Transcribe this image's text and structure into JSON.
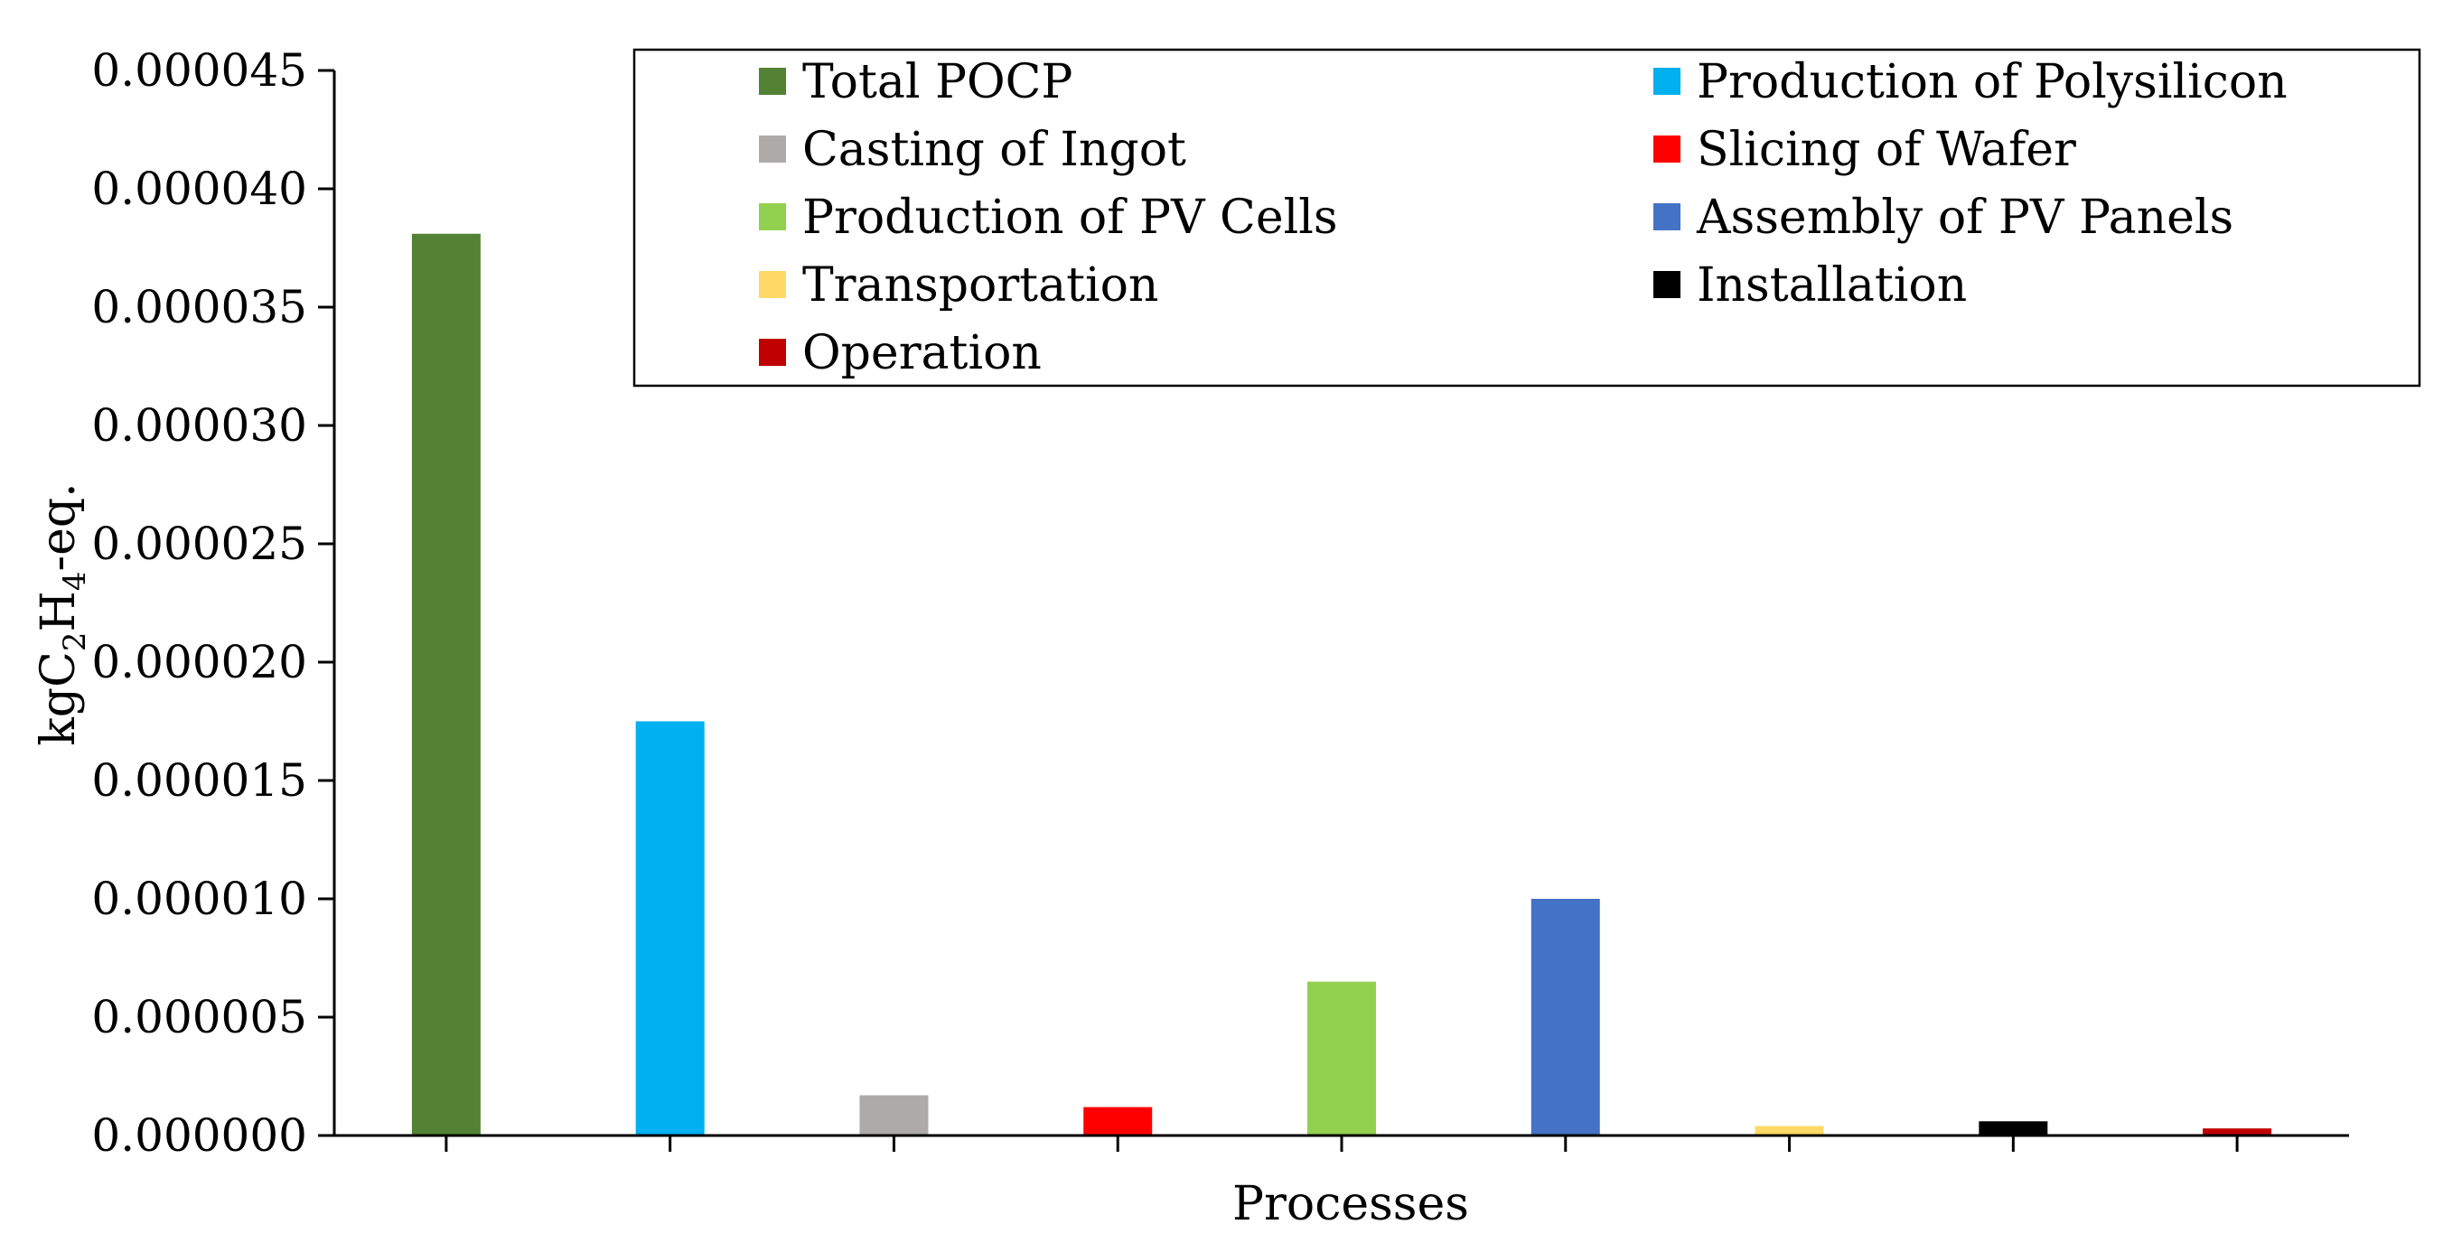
{
  "chart_data": {
    "type": "bar",
    "title": "",
    "xlabel": "Processes",
    "ylabel": {
      "prefix": "kgC",
      "sub1": "2",
      "mid": "H",
      "sub2": "4",
      "suffix": "-eq."
    },
    "ylim": [
      0,
      4.5e-05
    ],
    "yticks": [
      {
        "value": 0.0,
        "label": "0.000000"
      },
      {
        "value": 5e-06,
        "label": "0.000005"
      },
      {
        "value": 1e-05,
        "label": "0.000010"
      },
      {
        "value": 1.5e-05,
        "label": "0.000015"
      },
      {
        "value": 2e-05,
        "label": "0.000020"
      },
      {
        "value": 2.5e-05,
        "label": "0.000025"
      },
      {
        "value": 3e-05,
        "label": "0.000030"
      },
      {
        "value": 3.5e-05,
        "label": "0.000035"
      },
      {
        "value": 4e-05,
        "label": "0.000040"
      },
      {
        "value": 4.5e-05,
        "label": "0.000045"
      }
    ],
    "grid": false,
    "legend_position": "top-right",
    "series": [
      {
        "name": "Total POCP",
        "value": 3.81e-05,
        "color": "#548235"
      },
      {
        "name": "Production of Polysilicon",
        "value": 1.75e-05,
        "color": "#00B0F0"
      },
      {
        "name": "Casting of Ingot",
        "value": 1.7e-06,
        "color": "#AEAAAA"
      },
      {
        "name": "Slicing of Wafer",
        "value": 1.2e-06,
        "color": "#FF0000"
      },
      {
        "name": "Production of PV Cells",
        "value": 6.5e-06,
        "color": "#92D050"
      },
      {
        "name": "Assembly of PV Panels",
        "value": 1e-05,
        "color": "#4472C4"
      },
      {
        "name": "Transportation",
        "value": 4e-07,
        "color": "#FFD966"
      },
      {
        "name": "Installation",
        "value": 6e-07,
        "color": "#000000"
      },
      {
        "name": "Operation",
        "value": 3e-07,
        "color": "#C00000"
      }
    ]
  }
}
